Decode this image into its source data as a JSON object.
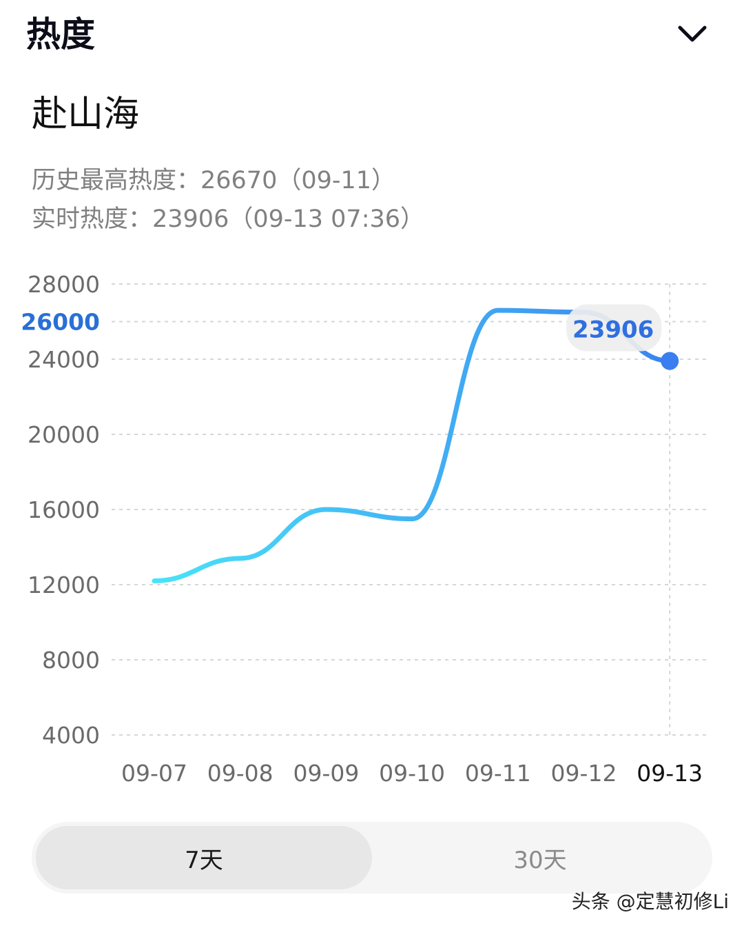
{
  "header": {
    "title": "热度",
    "collapse_icon": "chevron-down-icon"
  },
  "topic": {
    "title": "赴山海",
    "history_max": "历史最高热度：26670（09-11）",
    "realtime": "实时热度：23906（09-13 07:36）"
  },
  "chart_data": {
    "type": "line",
    "x": [
      "09-07",
      "09-08",
      "09-09",
      "09-10",
      "09-11",
      "09-12",
      "09-13"
    ],
    "series": [
      {
        "values": [
          12200,
          13400,
          16000,
          15500,
          26600,
          26500,
          23906
        ]
      }
    ],
    "y_ticks": [
      4000,
      8000,
      12000,
      16000,
      20000,
      24000,
      26000,
      28000
    ],
    "highlighted_y_tick": 26000,
    "ylim": [
      4000,
      28000
    ],
    "grid": "dashed-horizontal",
    "tooltip": {
      "x": "09-13",
      "value": "23906"
    },
    "colors": {
      "line_start": "#4ae3f7",
      "line_end": "#3a84f0",
      "marker": "#3a7ef0",
      "highlight_tick": "#2a6fd6",
      "tooltip_text": "#2f6fe0"
    }
  },
  "range_toggle": {
    "options": [
      {
        "label": "7天",
        "selected": true
      },
      {
        "label": "30天",
        "selected": false
      }
    ]
  },
  "watermark": {
    "text": "头条 @定慧初修Li"
  }
}
